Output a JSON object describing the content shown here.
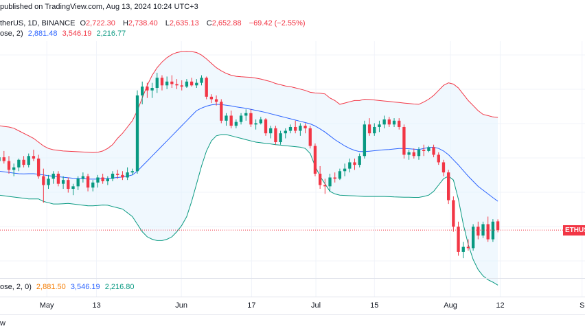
{
  "header": {
    "line1": "therUS, 1D, BINANCE",
    "published": "published on TradingView.com, Aug 13, 2024 10:24 UTC+3",
    "o_label": "O",
    "o_val": "2,722.30",
    "h_label": "H",
    "h_val": "2,738.40",
    "l_label": "L",
    "l_val": "2,635.13",
    "c_label": "C",
    "c_val": "2,652.88",
    "change": "−69.42 (−2.55%)",
    "line2_prefix": "ose, 2)",
    "bb_basis": "2,881.48",
    "bb_upper": "3,546.19",
    "bb_lower": "2,216.77"
  },
  "pane2": {
    "prefix": "ose, 2, 0)",
    "basis": "2,881.50",
    "upper": "3,546.19",
    "lower": "2,216.80"
  },
  "price_tag": "ETHUS",
  "footer_text": "w",
  "x_axis": [
    "May",
    "13",
    "Jun",
    "17",
    "Jul",
    "15",
    "Aug",
    "12",
    "S"
  ],
  "colors": {
    "up": "#089981",
    "down": "#f23645",
    "basis": "#2962ff",
    "upper": "#f23645",
    "lower": "#089981",
    "fill": "#e3f2fd"
  },
  "chart_data": {
    "type": "candlestick",
    "title": "",
    "ohlc": [
      [
        3200,
        3260,
        3150,
        3230
      ],
      [
        3230,
        3280,
        3180,
        3200
      ],
      [
        3200,
        3240,
        3100,
        3130
      ],
      [
        3130,
        3180,
        3080,
        3150
      ],
      [
        3150,
        3220,
        3120,
        3210
      ],
      [
        3210,
        3240,
        3150,
        3170
      ],
      [
        3170,
        3260,
        3150,
        3240
      ],
      [
        3240,
        3290,
        3200,
        3220
      ],
      [
        3220,
        3250,
        3060,
        3080
      ],
      [
        3080,
        3140,
        2870,
        3010
      ],
      [
        3010,
        3090,
        2980,
        3060
      ],
      [
        3060,
        3120,
        3020,
        3100
      ],
      [
        3100,
        3120,
        3000,
        3020
      ],
      [
        3020,
        3080,
        2980,
        3050
      ],
      [
        3050,
        3070,
        2950,
        2980
      ],
      [
        2980,
        3020,
        2930,
        3000
      ],
      [
        3000,
        3080,
        2970,
        3060
      ],
      [
        3060,
        3110,
        3030,
        3080
      ],
      [
        3080,
        3100,
        2960,
        2990
      ],
      [
        2990,
        3050,
        2960,
        3030
      ],
      [
        3030,
        3090,
        2990,
        3070
      ],
      [
        3070,
        3100,
        3020,
        3040
      ],
      [
        3040,
        3080,
        3010,
        3060
      ],
      [
        3060,
        3120,
        3040,
        3100
      ],
      [
        3100,
        3130,
        3060,
        3090
      ],
      [
        3090,
        3120,
        3050,
        3070
      ],
      [
        3070,
        3150,
        3050,
        3110
      ],
      [
        3110,
        3140,
        3090,
        3120
      ],
      [
        3120,
        3760,
        3100,
        3720
      ],
      [
        3720,
        3830,
        3650,
        3790
      ],
      [
        3790,
        3820,
        3700,
        3760
      ],
      [
        3760,
        3820,
        3700,
        3780
      ],
      [
        3780,
        3900,
        3740,
        3860
      ],
      [
        3860,
        3880,
        3760,
        3800
      ],
      [
        3800,
        3870,
        3770,
        3830
      ],
      [
        3830,
        3880,
        3780,
        3810
      ],
      [
        3810,
        3850,
        3770,
        3800
      ],
      [
        3800,
        3840,
        3760,
        3790
      ],
      [
        3790,
        3850,
        3780,
        3830
      ],
      [
        3830,
        3860,
        3790,
        3800
      ],
      [
        3800,
        3850,
        3780,
        3820
      ],
      [
        3820,
        3880,
        3800,
        3860
      ],
      [
        3860,
        3870,
        3690,
        3710
      ],
      [
        3710,
        3730,
        3660,
        3690
      ],
      [
        3690,
        3720,
        3640,
        3670
      ],
      [
        3670,
        3690,
        3500,
        3520
      ],
      [
        3520,
        3580,
        3480,
        3560
      ],
      [
        3560,
        3600,
        3460,
        3480
      ],
      [
        3480,
        3530,
        3460,
        3510
      ],
      [
        3510,
        3580,
        3490,
        3560
      ],
      [
        3560,
        3610,
        3520,
        3580
      ],
      [
        3580,
        3610,
        3470,
        3490
      ],
      [
        3490,
        3530,
        3450,
        3500
      ],
      [
        3500,
        3550,
        3490,
        3530
      ],
      [
        3530,
        3540,
        3400,
        3420
      ],
      [
        3420,
        3480,
        3380,
        3460
      ],
      [
        3460,
        3480,
        3330,
        3350
      ],
      [
        3350,
        3440,
        3330,
        3420
      ],
      [
        3420,
        3460,
        3380,
        3440
      ],
      [
        3440,
        3490,
        3420,
        3470
      ],
      [
        3470,
        3520,
        3420,
        3440
      ],
      [
        3440,
        3500,
        3400,
        3480
      ],
      [
        3480,
        3500,
        3420,
        3460
      ],
      [
        3460,
        3480,
        3300,
        3320
      ],
      [
        3320,
        3340,
        3080,
        3100
      ],
      [
        3100,
        3160,
        2980,
        3010
      ],
      [
        3010,
        3060,
        2940,
        3000
      ],
      [
        3000,
        3100,
        2960,
        3070
      ],
      [
        3070,
        3110,
        3030,
        3060
      ],
      [
        3060,
        3140,
        3050,
        3120
      ],
      [
        3120,
        3180,
        3080,
        3140
      ],
      [
        3140,
        3220,
        3110,
        3190
      ],
      [
        3190,
        3220,
        3130,
        3170
      ],
      [
        3170,
        3260,
        3150,
        3240
      ],
      [
        3240,
        3520,
        3220,
        3490
      ],
      [
        3490,
        3540,
        3400,
        3420
      ],
      [
        3420,
        3500,
        3400,
        3470
      ],
      [
        3470,
        3520,
        3430,
        3490
      ],
      [
        3490,
        3560,
        3460,
        3530
      ],
      [
        3530,
        3550,
        3470,
        3490
      ],
      [
        3490,
        3540,
        3470,
        3520
      ],
      [
        3520,
        3540,
        3450,
        3470
      ],
      [
        3470,
        3490,
        3220,
        3250
      ],
      [
        3250,
        3290,
        3210,
        3270
      ],
      [
        3270,
        3300,
        3220,
        3240
      ],
      [
        3240,
        3310,
        3210,
        3290
      ],
      [
        3290,
        3330,
        3240,
        3280
      ],
      [
        3280,
        3320,
        3270,
        3310
      ],
      [
        3310,
        3330,
        3230,
        3250
      ],
      [
        3250,
        3270,
        3170,
        3190
      ],
      [
        3190,
        3210,
        3080,
        3110
      ],
      [
        3110,
        3130,
        2860,
        2890
      ],
      [
        2890,
        2920,
        2640,
        2680
      ],
      [
        2680,
        2720,
        2450,
        2480
      ],
      [
        2480,
        2560,
        2430,
        2520
      ],
      [
        2520,
        2580,
        2490,
        2510
      ],
      [
        2510,
        2700,
        2490,
        2680
      ],
      [
        2680,
        2720,
        2580,
        2610
      ],
      [
        2610,
        2720,
        2590,
        2700
      ],
      [
        2700,
        2760,
        2560,
        2580
      ],
      [
        2580,
        2740,
        2560,
        2720
      ],
      [
        2722.3,
        2738.4,
        2635.13,
        2652.88
      ]
    ],
    "bollinger": {
      "basis": [
        3120,
        3115,
        3110,
        3105,
        3100,
        3098,
        3100,
        3100,
        3096,
        3090,
        3084,
        3080,
        3076,
        3072,
        3068,
        3064,
        3062,
        3060,
        3058,
        3057,
        3058,
        3060,
        3062,
        3066,
        3070,
        3074,
        3080,
        3090,
        3120,
        3160,
        3200,
        3240,
        3280,
        3320,
        3360,
        3400,
        3440,
        3480,
        3520,
        3560,
        3600,
        3620,
        3635,
        3645,
        3650,
        3648,
        3643,
        3637,
        3630,
        3624,
        3618,
        3610,
        3602,
        3594,
        3585,
        3575,
        3565,
        3555,
        3545,
        3535,
        3525,
        3515,
        3505,
        3495,
        3478,
        3455,
        3430,
        3400,
        3370,
        3345,
        3320,
        3300,
        3285,
        3275,
        3275,
        3278,
        3282,
        3286,
        3290,
        3292,
        3296,
        3300,
        3300,
        3298,
        3294,
        3292,
        3300,
        3308,
        3310,
        3300,
        3280,
        3250,
        3210,
        3170,
        3125,
        3080,
        3040,
        3000,
        2970,
        2940,
        2910,
        2881.48
      ],
      "upper": [
        3480,
        3475,
        3470,
        3460,
        3440,
        3420,
        3400,
        3380,
        3350,
        3320,
        3300,
        3290,
        3285,
        3280,
        3278,
        3276,
        3274,
        3272,
        3270,
        3268,
        3270,
        3280,
        3300,
        3330,
        3380,
        3420,
        3470,
        3520,
        3600,
        3700,
        3800,
        3880,
        3940,
        3985,
        4020,
        4045,
        4060,
        4068,
        4070,
        4068,
        4060,
        4040,
        4010,
        3975,
        3940,
        3915,
        3895,
        3880,
        3872,
        3868,
        3866,
        3864,
        3858,
        3850,
        3840,
        3830,
        3815,
        3805,
        3795,
        3790,
        3780,
        3770,
        3760,
        3745,
        3740,
        3738,
        3732,
        3700,
        3680,
        3650,
        3660,
        3670,
        3680,
        3680,
        3690,
        3688,
        3684,
        3680,
        3676,
        3672,
        3668,
        3664,
        3660,
        3656,
        3652,
        3650,
        3668,
        3690,
        3720,
        3760,
        3800,
        3820,
        3810,
        3780,
        3730,
        3680,
        3640,
        3600,
        3570,
        3560,
        3550,
        3546.19
      ],
      "lower": [
        2930,
        2925,
        2920,
        2915,
        2910,
        2905,
        2900,
        2900,
        2900,
        2880,
        2870,
        2860,
        2860,
        2862,
        2864,
        2860,
        2855,
        2850,
        2846,
        2846,
        2848,
        2852,
        2850,
        2840,
        2830,
        2820,
        2790,
        2760,
        2700,
        2640,
        2600,
        2580,
        2570,
        2570,
        2580,
        2600,
        2640,
        2690,
        2760,
        2880,
        3020,
        3160,
        3280,
        3360,
        3400,
        3410,
        3410,
        3400,
        3390,
        3380,
        3370,
        3360,
        3350,
        3345,
        3340,
        3336,
        3330,
        3326,
        3322,
        3318,
        3314,
        3310,
        3300,
        3260,
        3160,
        3080,
        3020,
        2960,
        2940,
        2930,
        2928,
        2926,
        2924,
        2922,
        2920,
        2920,
        2920,
        2920,
        2920,
        2918,
        2916,
        2915,
        2914,
        2913,
        2912,
        2912,
        2920,
        2930,
        2960,
        3010,
        3060,
        3080,
        3050,
        2900,
        2700,
        2540,
        2420,
        2340,
        2290,
        2260,
        2240,
        2216.77
      ]
    },
    "last_price": 2652.88,
    "y_range": [
      2300,
      4150
    ],
    "x_ticks": [
      "May",
      "13",
      "Jun",
      "17",
      "Jul",
      "15",
      "Aug",
      "12",
      "S"
    ]
  }
}
